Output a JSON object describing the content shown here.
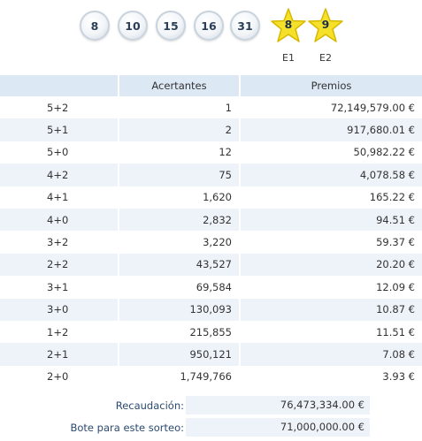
{
  "numbers": [
    "8",
    "10",
    "15",
    "16",
    "31"
  ],
  "stars": [
    {
      "value": "8",
      "label": "E1"
    },
    {
      "value": "9",
      "label": "E2"
    }
  ],
  "table": {
    "headers": {
      "category": "",
      "winners": "Acertantes",
      "prize": "Premios"
    },
    "rows": [
      {
        "category": "5+2",
        "winners": "1",
        "prize": "72,149,579.00 €"
      },
      {
        "category": "5+1",
        "winners": "2",
        "prize": "917,680.01 €"
      },
      {
        "category": "5+0",
        "winners": "12",
        "prize": "50,982.22 €"
      },
      {
        "category": "4+2",
        "winners": "75",
        "prize": "4,078.58 €"
      },
      {
        "category": "4+1",
        "winners": "1,620",
        "prize": "165.22 €"
      },
      {
        "category": "4+0",
        "winners": "2,832",
        "prize": "94.51 €"
      },
      {
        "category": "3+2",
        "winners": "3,220",
        "prize": "59.37 €"
      },
      {
        "category": "2+2",
        "winners": "43,527",
        "prize": "20.20 €"
      },
      {
        "category": "3+1",
        "winners": "69,584",
        "prize": "12.09 €"
      },
      {
        "category": "3+0",
        "winners": "130,093",
        "prize": "10.87 €"
      },
      {
        "category": "1+2",
        "winners": "215,855",
        "prize": "11.51 €"
      },
      {
        "category": "2+1",
        "winners": "950,121",
        "prize": "7.08 €"
      },
      {
        "category": "2+0",
        "winners": "1,749,766",
        "prize": "3.93 €"
      }
    ]
  },
  "summary": {
    "collection_label": "Recaudación:",
    "collection_value": "76,473,334.00 €",
    "jackpot_label": "Bote para este sorteo:",
    "jackpot_value": "71,000,000.00 €"
  },
  "colors": {
    "header_bg": "#dce8f4",
    "alt_row_bg": "#eef3f9",
    "star_fill": "#f5e12a",
    "star_stroke": "#d9b800"
  }
}
